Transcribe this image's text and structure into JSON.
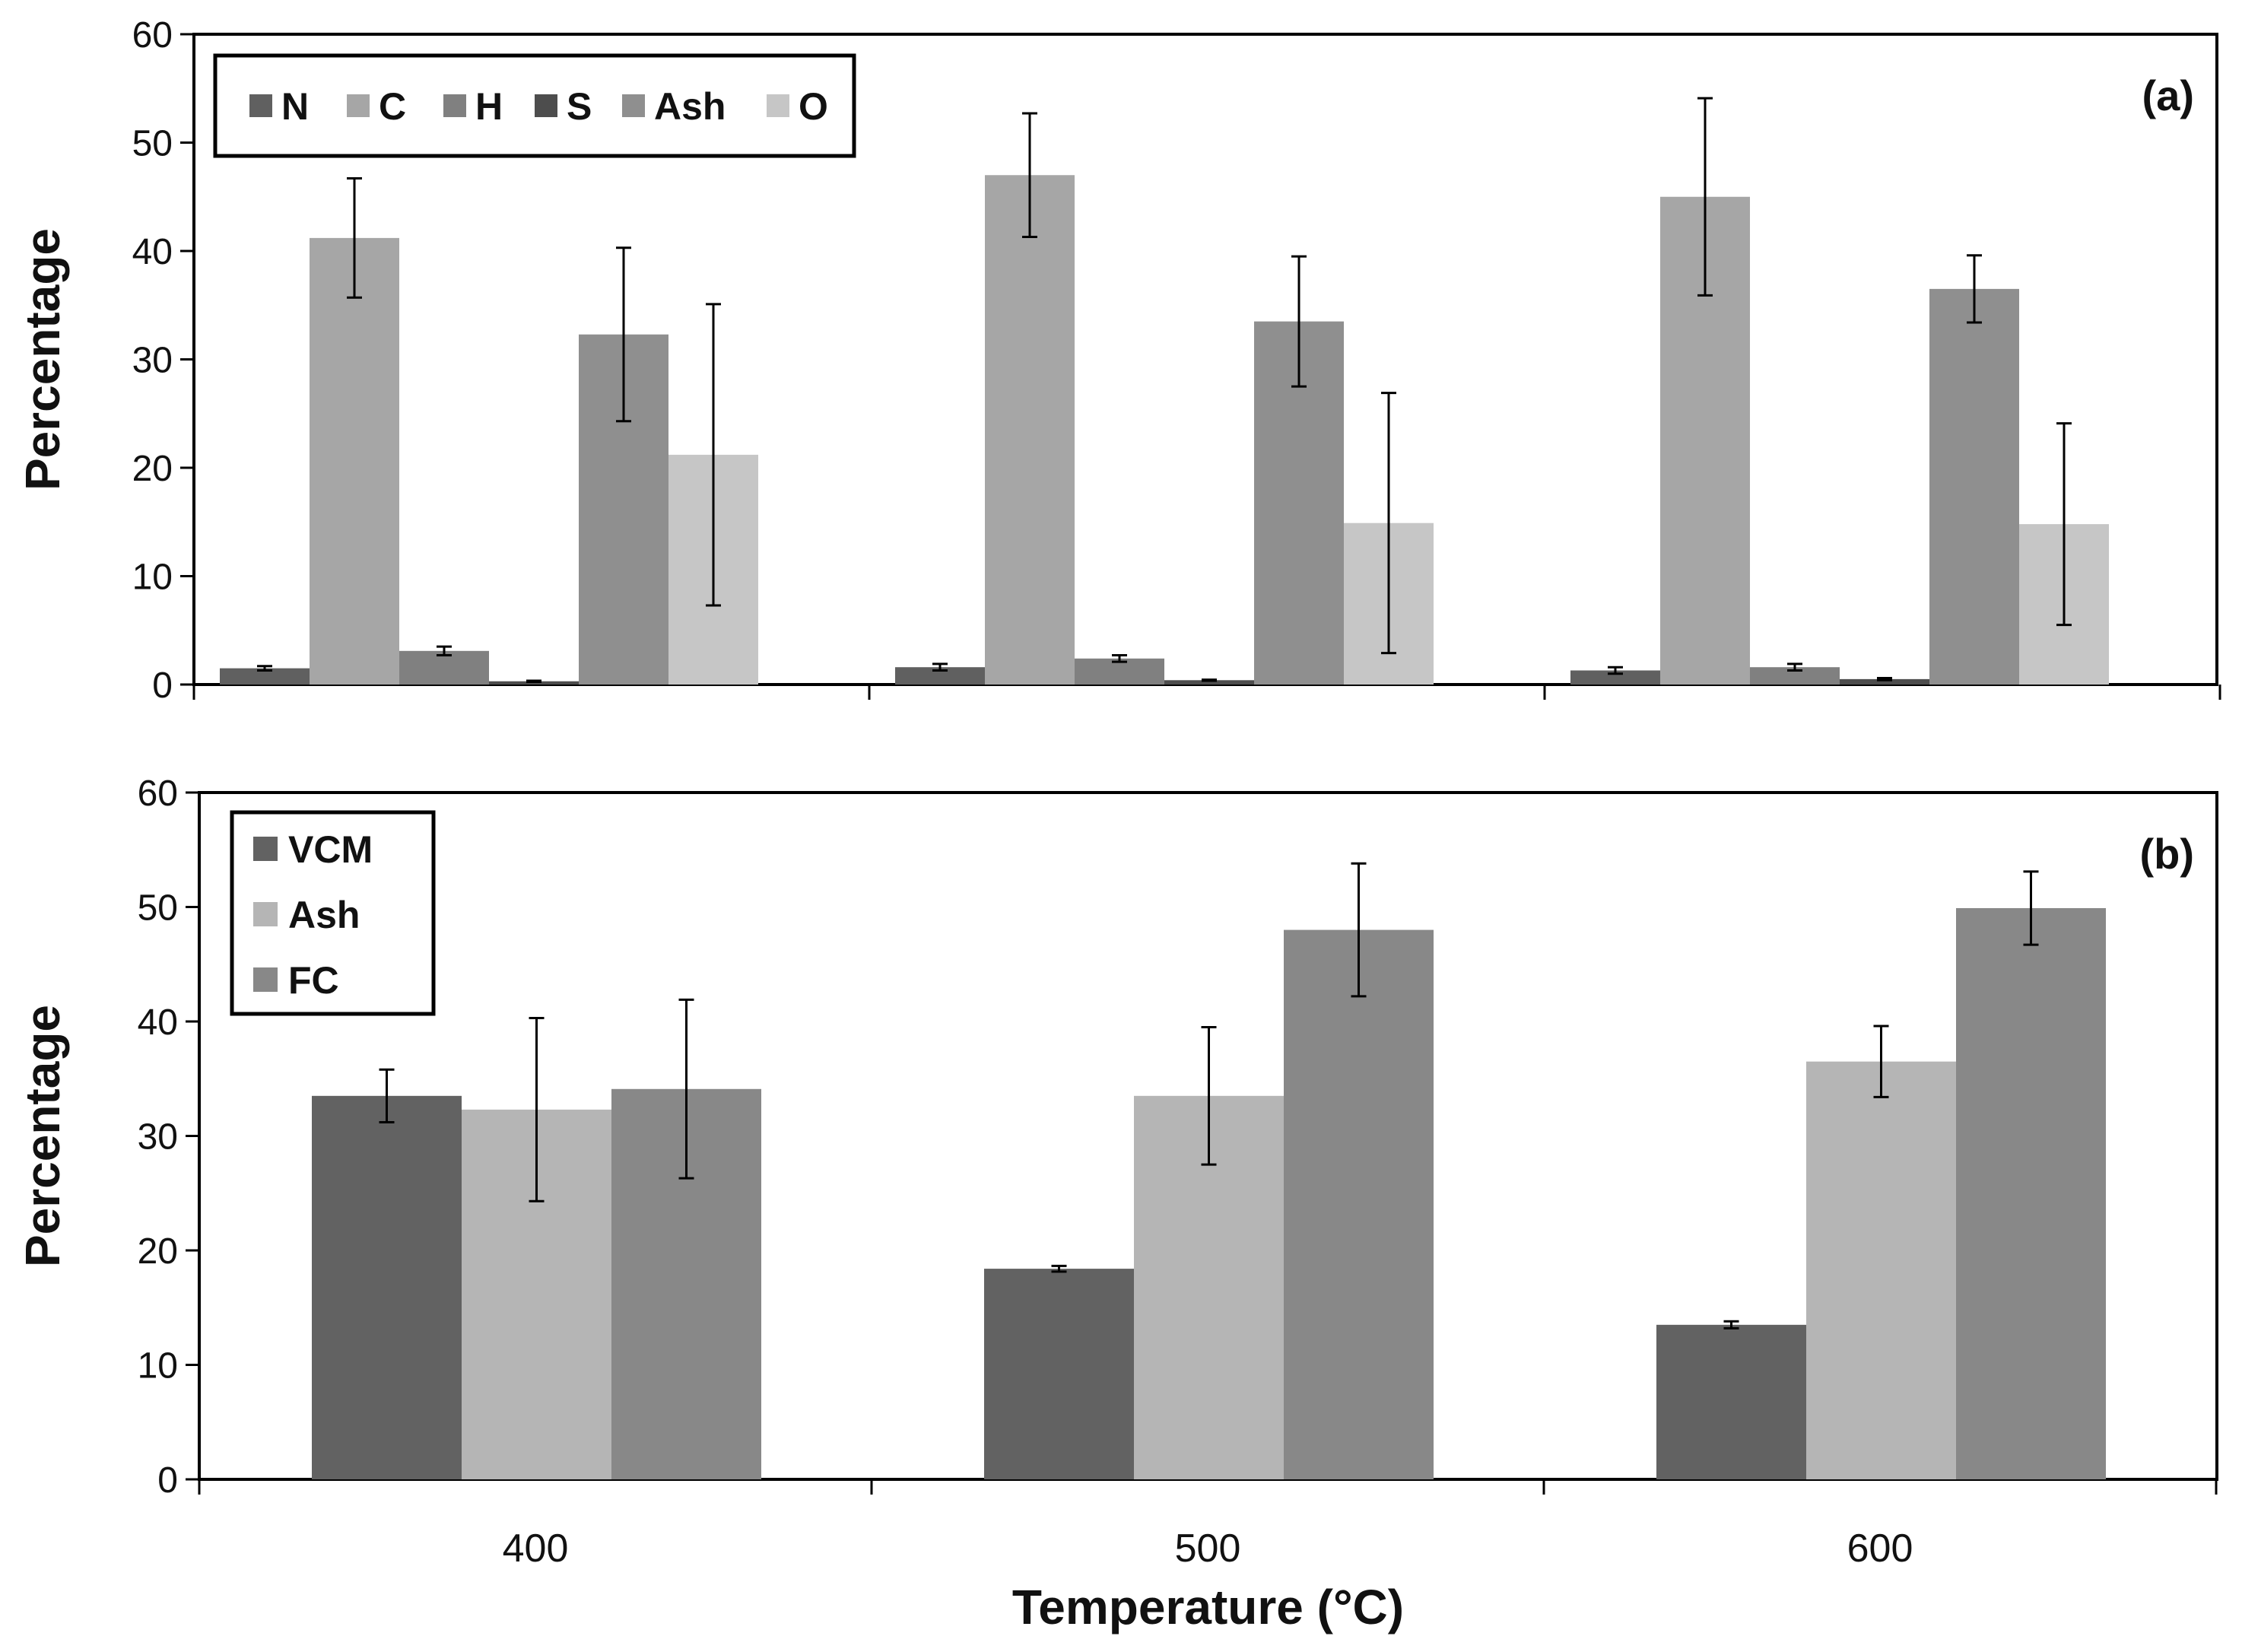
{
  "chart_data": [
    {
      "type": "bar",
      "panel_label": "(a)",
      "ylabel": "Percentage",
      "ylim": [
        0,
        60
      ],
      "yticks": [
        "0",
        "10",
        "20",
        "30",
        "40",
        "50",
        "60"
      ],
      "categories": [
        "400",
        "500",
        "600"
      ],
      "legend_position": "top-left",
      "grid": false,
      "series": [
        {
          "name": "N",
          "color": "#606060",
          "values": [
            1.5,
            1.6,
            1.3
          ],
          "errors": [
            0.2,
            0.3,
            0.3
          ]
        },
        {
          "name": "C",
          "color": "#a6a6a6",
          "values": [
            41.2,
            47.0,
            45.0
          ],
          "errors": [
            5.5,
            5.7,
            9.1
          ]
        },
        {
          "name": "H",
          "color": "#808080",
          "values": [
            3.1,
            2.4,
            1.6
          ],
          "errors": [
            0.4,
            0.3,
            0.3
          ]
        },
        {
          "name": "S",
          "color": "#4d4d4d",
          "values": [
            0.3,
            0.4,
            0.5
          ],
          "errors": [
            0.05,
            0.05,
            0.1
          ]
        },
        {
          "name": "Ash",
          "color": "#8f8f8f",
          "values": [
            32.3,
            33.5,
            36.5
          ],
          "errors": [
            8.0,
            6.0,
            3.1
          ]
        },
        {
          "name": "O",
          "color": "#c6c6c6",
          "values": [
            21.2,
            14.9,
            14.8
          ],
          "errors": [
            13.9,
            12.0,
            9.3
          ]
        }
      ]
    },
    {
      "type": "bar",
      "panel_label": "(b)",
      "xlabel": "Temperature (°C)",
      "ylabel": "Percentage",
      "ylim": [
        0,
        60
      ],
      "yticks": [
        "0",
        "10",
        "20",
        "30",
        "40",
        "50",
        "60"
      ],
      "categories": [
        "400",
        "500",
        "600"
      ],
      "legend_position": "top-left",
      "grid": false,
      "series": [
        {
          "name": "VCM",
          "color": "#626262",
          "values": [
            33.5,
            18.4,
            13.5
          ],
          "errors": [
            2.3,
            0.25,
            0.3
          ]
        },
        {
          "name": "Ash",
          "color": "#b5b5b5",
          "values": [
            32.3,
            33.5,
            36.5
          ],
          "errors": [
            8.0,
            6.0,
            3.1
          ]
        },
        {
          "name": "FC",
          "color": "#888888",
          "values": [
            34.1,
            48.0,
            49.9
          ],
          "errors": [
            7.8,
            5.8,
            3.2
          ]
        }
      ]
    }
  ]
}
